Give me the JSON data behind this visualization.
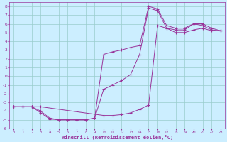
{
  "xlabel": "Windchill (Refroidissement éolien,°C)",
  "bg_color": "#cceeff",
  "grid_color": "#99cccc",
  "line_color": "#993399",
  "xlim": [
    -0.5,
    23.5
  ],
  "ylim": [
    -6,
    8.5
  ],
  "xticks": [
    0,
    1,
    2,
    3,
    4,
    5,
    6,
    7,
    8,
    9,
    10,
    11,
    12,
    13,
    14,
    15,
    16,
    17,
    18,
    19,
    20,
    21,
    22,
    23
  ],
  "yticks": [
    -6,
    -5,
    -4,
    -3,
    -2,
    -1,
    0,
    1,
    2,
    3,
    4,
    5,
    6,
    7,
    8
  ],
  "line1_x": [
    0,
    1,
    2,
    3,
    10,
    11,
    12,
    13,
    14,
    15,
    16,
    17,
    18,
    19,
    20,
    21,
    22,
    23
  ],
  "line1_y": [
    -3.5,
    -3.5,
    -3.5,
    -3.5,
    -4.5,
    -4.5,
    -4.4,
    -4.2,
    -3.8,
    -3.3,
    5.8,
    5.5,
    5.0,
    5.0,
    5.3,
    5.5,
    5.2,
    5.2
  ],
  "line2_x": [
    0,
    1,
    2,
    3,
    4,
    5,
    6,
    7,
    8,
    9,
    10,
    11,
    12,
    13,
    14,
    15,
    16,
    17,
    18,
    19,
    20,
    21,
    22,
    23
  ],
  "line2_y": [
    -3.5,
    -3.5,
    -3.5,
    -4.0,
    -4.8,
    -5.0,
    -5.0,
    -5.0,
    -5.0,
    -4.8,
    2.5,
    2.8,
    3.0,
    3.3,
    3.5,
    8.0,
    7.7,
    5.8,
    5.5,
    5.5,
    6.0,
    5.8,
    5.3,
    5.2
  ],
  "line3_x": [
    0,
    1,
    2,
    3,
    4,
    5,
    6,
    7,
    8,
    9,
    10,
    11,
    12,
    13,
    14,
    15,
    16,
    17,
    18,
    19,
    20,
    21,
    22,
    23
  ],
  "line3_y": [
    -3.5,
    -3.5,
    -3.5,
    -4.2,
    -4.9,
    -5.0,
    -5.0,
    -5.0,
    -5.0,
    -4.8,
    -1.5,
    -1.0,
    -0.5,
    0.2,
    2.5,
    7.8,
    7.5,
    5.5,
    5.3,
    5.3,
    6.0,
    6.0,
    5.5,
    5.2
  ]
}
